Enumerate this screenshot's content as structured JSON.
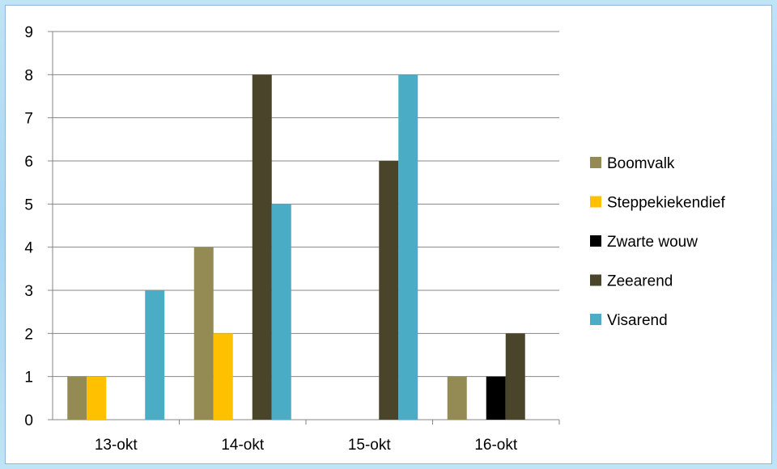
{
  "chart_data": {
    "type": "bar",
    "categories": [
      "13-okt",
      "14-okt",
      "15-okt",
      "16-okt"
    ],
    "series": [
      {
        "name": "Boomvalk",
        "color": "#948a54",
        "values": [
          1,
          4,
          0,
          1
        ]
      },
      {
        "name": "Steppekiekendief",
        "color": "#ffc000",
        "values": [
          1,
          2,
          0,
          0
        ]
      },
      {
        "name": "Zwarte wouw",
        "color": "#000000",
        "values": [
          0,
          0,
          0,
          1
        ]
      },
      {
        "name": "Zeearend",
        "color": "#4a452a",
        "values": [
          0,
          8,
          6,
          2
        ]
      },
      {
        "name": "Visarend",
        "color": "#4bacc6",
        "values": [
          3,
          5,
          8,
          0
        ]
      }
    ],
    "yticks": [
      0,
      1,
      2,
      3,
      4,
      5,
      6,
      7,
      8,
      9
    ],
    "ylim": [
      0,
      9
    ],
    "grid": true,
    "legend": "right"
  }
}
